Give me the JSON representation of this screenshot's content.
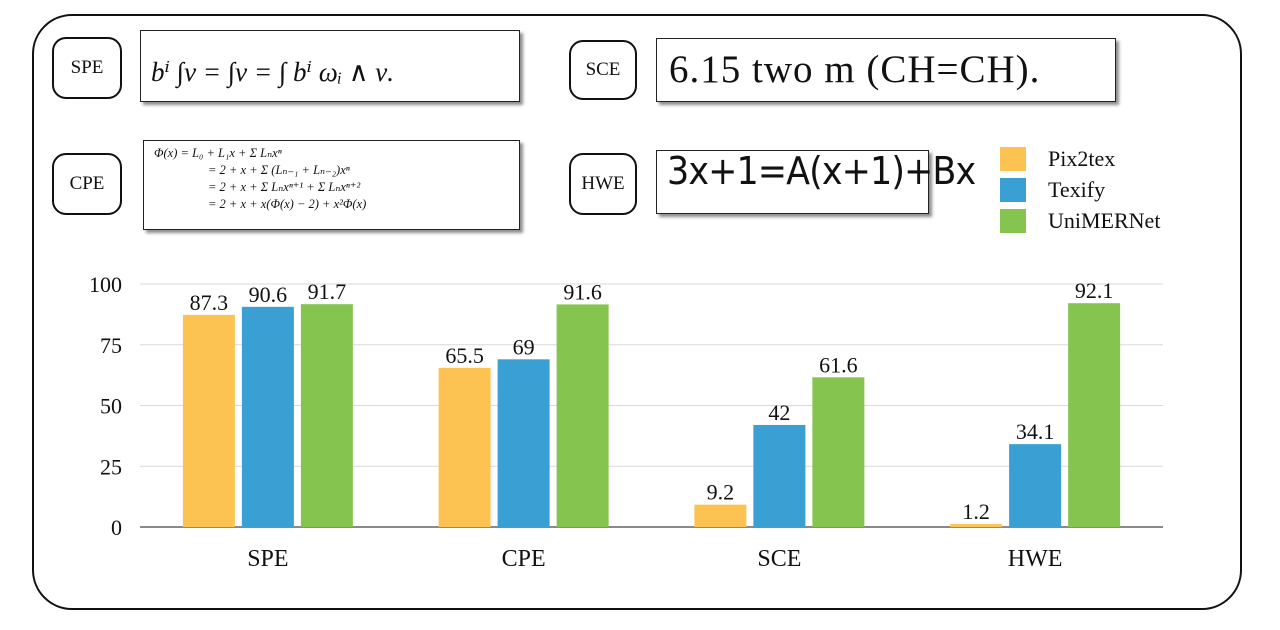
{
  "samples": {
    "spe": {
      "tag": "SPE",
      "formula": "bⁱ ∫ν = ∫ν = ∫ bⁱ ωᵢ ∧ ν."
    },
    "cpe": {
      "tag": "CPE",
      "lines": [
        "Φ(x)   = L₀ + L₁x + Σ Lₙxⁿ",
        "= 2 + x + Σ (Lₙ₋₁ + Lₙ₋₂)xⁿ",
        "= 2 + x + Σ Lₙxⁿ⁺¹ + Σ Lₙxⁿ⁺²",
        "= 2 + x + x(Φ(x) − 2) + x²Φ(x)"
      ]
    },
    "sce": {
      "tag": "SCE",
      "text": "6.15  two  m  (CH=CH)."
    },
    "hwe": {
      "tag": "HWE",
      "text": "3x+1=A(x+1)+Bx"
    }
  },
  "colors": {
    "pix2tex": "#fcc252",
    "texify": "#3a9fd3",
    "unimernet": "#86c450"
  },
  "chart_data": {
    "type": "bar",
    "categories": [
      "SPE",
      "CPE",
      "SCE",
      "HWE"
    ],
    "series": [
      {
        "name": "Pix2tex",
        "values": [
          87.3,
          65.5,
          9.2,
          1.2
        ]
      },
      {
        "name": "Texify",
        "values": [
          90.6,
          69,
          42,
          34.1
        ]
      },
      {
        "name": "UniMERNet",
        "values": [
          91.7,
          91.6,
          61.6,
          92.1
        ]
      }
    ],
    "yticks": [
      0,
      25,
      50,
      75,
      100
    ],
    "ylim": [
      0,
      100
    ],
    "grid": true,
    "legend": "top-right"
  }
}
